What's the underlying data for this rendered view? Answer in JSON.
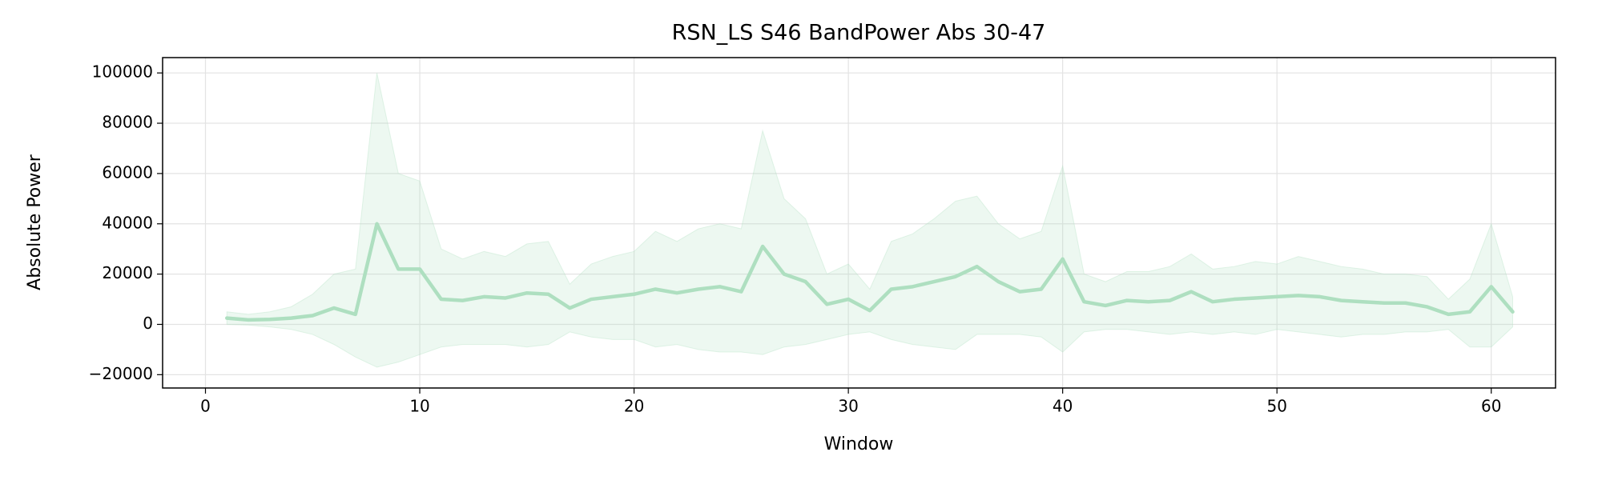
{
  "chart_data": {
    "type": "line",
    "title": "RSN_LS S46 BandPower Abs 30-47",
    "xlabel": "Window",
    "ylabel": "Absolute Power",
    "color": "#aedfc0",
    "grid": true,
    "x": [
      1,
      2,
      3,
      4,
      5,
      6,
      7,
      8,
      9,
      10,
      11,
      12,
      13,
      14,
      15,
      16,
      17,
      18,
      19,
      20,
      21,
      22,
      23,
      24,
      25,
      26,
      27,
      28,
      29,
      30,
      31,
      32,
      33,
      34,
      35,
      36,
      37,
      38,
      39,
      40,
      41,
      42,
      43,
      44,
      45,
      46,
      47,
      48,
      49,
      50,
      51,
      52,
      53,
      54,
      55,
      56,
      57,
      58,
      59,
      60,
      61
    ],
    "values": [
      2500,
      1800,
      2000,
      2500,
      3500,
      6500,
      4000,
      40000,
      22000,
      22000,
      10000,
      9500,
      11000,
      10500,
      12500,
      12000,
      6500,
      10000,
      11000,
      12000,
      14000,
      12500,
      14000,
      15000,
      13000,
      31000,
      20000,
      17000,
      8000,
      10000,
      5500,
      14000,
      15000,
      17000,
      19000,
      23000,
      17000,
      13000,
      14000,
      26000,
      9000,
      7500,
      9500,
      9000,
      9500,
      13000,
      9000,
      10000,
      10500,
      11000,
      11500,
      11000,
      9500,
      9000,
      8500,
      8500,
      7000,
      4000,
      5000,
      15000,
      5000
    ],
    "band_upper": [
      5000,
      4000,
      5000,
      7000,
      12000,
      20000,
      22000,
      100000,
      60000,
      57000,
      30000,
      26000,
      29000,
      27000,
      32000,
      33000,
      16000,
      24000,
      27000,
      29000,
      37000,
      33000,
      38000,
      40000,
      38000,
      77000,
      50000,
      42000,
      20000,
      24000,
      14000,
      33000,
      36000,
      42000,
      49000,
      51000,
      40000,
      34000,
      37000,
      63000,
      20000,
      17000,
      21000,
      21000,
      23000,
      28000,
      22000,
      23000,
      25000,
      24000,
      27000,
      25000,
      23000,
      22000,
      20000,
      20000,
      19000,
      10000,
      18000,
      40000,
      11000
    ],
    "band_lower": [
      0,
      -300,
      -1000,
      -2000,
      -4000,
      -8000,
      -13000,
      -17000,
      -15000,
      -12000,
      -9000,
      -8000,
      -8000,
      -8000,
      -9000,
      -8000,
      -3000,
      -5000,
      -6000,
      -6000,
      -9000,
      -8000,
      -10000,
      -11000,
      -11000,
      -12000,
      -9000,
      -8000,
      -6000,
      -4000,
      -3000,
      -6000,
      -8000,
      -9000,
      -10000,
      -4000,
      -4000,
      -4000,
      -5000,
      -11000,
      -3000,
      -2000,
      -2000,
      -3000,
      -4000,
      -3000,
      -4000,
      -3000,
      -4000,
      -2000,
      -3000,
      -4000,
      -5000,
      -4000,
      -4000,
      -3000,
      -3000,
      -2000,
      -9000,
      -9000,
      -1000
    ],
    "xlim": [
      -2,
      63
    ],
    "ylim": [
      -25300,
      106100
    ],
    "xticks": [
      0,
      10,
      20,
      30,
      40,
      50,
      60
    ],
    "yticks": [
      {
        "value": -20000,
        "label": "−20000"
      },
      0,
      20000,
      40000,
      60000,
      80000,
      100000
    ]
  }
}
